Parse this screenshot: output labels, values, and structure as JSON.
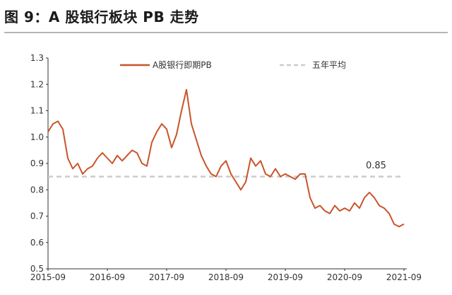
{
  "title": "图 9：A 股银行板块 PB 走势",
  "chart_data": {
    "type": "line",
    "title": "图 9：A 股银行板块 PB 走势",
    "xlabel": "",
    "ylabel": "",
    "x_ticks": [
      "2015-09",
      "2016-09",
      "2017-09",
      "2018-09",
      "2019-09",
      "2020-09",
      "2021-09"
    ],
    "y_ticks": [
      "0.5",
      "0.6",
      "0.7",
      "0.8",
      "0.9",
      "1.0",
      "1.1",
      "1.2",
      "1.3"
    ],
    "ylim": [
      0.5,
      1.3
    ],
    "xlim": [
      "2015-09",
      "2021-09"
    ],
    "grid": false,
    "legend_position": "top",
    "series": [
      {
        "name": "A股银行即期PB",
        "color": "#c8542a",
        "style": "solid",
        "x": [
          "2015-09",
          "2015-10",
          "2015-11",
          "2015-12",
          "2016-01",
          "2016-02",
          "2016-03",
          "2016-04",
          "2016-05",
          "2016-06",
          "2016-07",
          "2016-08",
          "2016-09",
          "2016-10",
          "2016-11",
          "2016-12",
          "2017-01",
          "2017-02",
          "2017-03",
          "2017-04",
          "2017-05",
          "2017-06",
          "2017-07",
          "2017-08",
          "2017-09",
          "2017-10",
          "2017-11",
          "2017-12",
          "2018-01",
          "2018-02",
          "2018-03",
          "2018-04",
          "2018-05",
          "2018-06",
          "2018-07",
          "2018-08",
          "2018-09",
          "2018-10",
          "2018-11",
          "2018-12",
          "2019-01",
          "2019-02",
          "2019-03",
          "2019-04",
          "2019-05",
          "2019-06",
          "2019-07",
          "2019-08",
          "2019-09",
          "2019-10",
          "2019-11",
          "2019-12",
          "2020-01",
          "2020-02",
          "2020-03",
          "2020-04",
          "2020-05",
          "2020-06",
          "2020-07",
          "2020-08",
          "2020-09",
          "2020-10",
          "2020-11",
          "2020-12",
          "2021-01",
          "2021-02",
          "2021-03",
          "2021-04",
          "2021-05",
          "2021-06",
          "2021-07",
          "2021-08",
          "2021-09"
        ],
        "values": [
          1.02,
          1.05,
          1.06,
          1.03,
          0.92,
          0.88,
          0.9,
          0.86,
          0.88,
          0.89,
          0.92,
          0.94,
          0.92,
          0.9,
          0.93,
          0.91,
          0.93,
          0.95,
          0.94,
          0.9,
          0.89,
          0.98,
          1.02,
          1.05,
          1.03,
          0.96,
          1.01,
          1.1,
          1.18,
          1.05,
          0.99,
          0.93,
          0.89,
          0.86,
          0.85,
          0.89,
          0.91,
          0.86,
          0.83,
          0.8,
          0.83,
          0.92,
          0.89,
          0.91,
          0.86,
          0.85,
          0.88,
          0.85,
          0.86,
          0.85,
          0.84,
          0.86,
          0.86,
          0.77,
          0.73,
          0.74,
          0.72,
          0.71,
          0.74,
          0.72,
          0.73,
          0.72,
          0.75,
          0.73,
          0.77,
          0.79,
          0.77,
          0.74,
          0.73,
          0.71,
          0.67,
          0.66,
          0.67
        ]
      },
      {
        "name": "五年平均",
        "color": "#cccccc",
        "style": "dashed",
        "constant": 0.85
      }
    ],
    "annotations": [
      {
        "text": "0.85",
        "value": 0.85
      }
    ]
  }
}
